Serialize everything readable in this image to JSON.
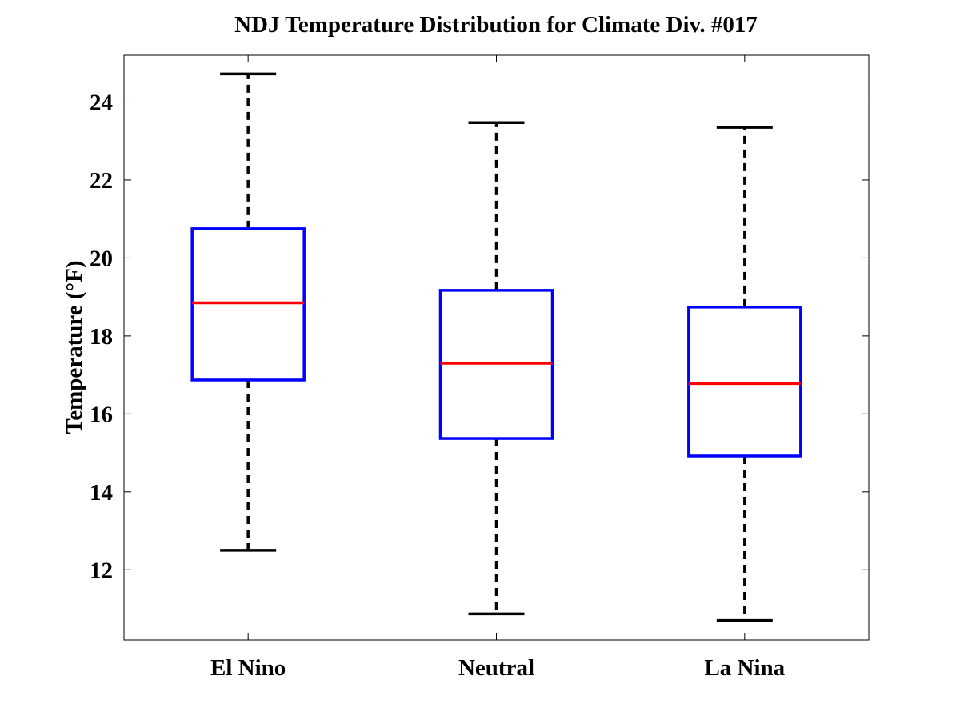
{
  "chart_data": {
    "type": "boxplot",
    "title": "NDJ Temperature Distribution for Climate Div. #017",
    "xlabel": "",
    "ylabel": "Temperature (°F)",
    "ylim": [
      10.2,
      25.2
    ],
    "yticks": [
      12,
      14,
      16,
      18,
      20,
      22,
      24
    ],
    "ytick_labels": [
      "12",
      "14",
      "16",
      "18",
      "20",
      "22",
      "24"
    ],
    "categories": [
      "El Nino",
      "Neutral",
      "La Nina"
    ],
    "boxes": [
      {
        "name": "El Nino",
        "whisker_low": 12.5,
        "q1": 16.87,
        "median": 18.85,
        "q3": 20.75,
        "whisker_high": 24.72
      },
      {
        "name": "Neutral",
        "whisker_low": 10.87,
        "q1": 15.37,
        "median": 17.3,
        "q3": 19.17,
        "whisker_high": 23.47
      },
      {
        "name": "La Nina",
        "whisker_low": 10.7,
        "q1": 14.92,
        "median": 16.78,
        "q3": 18.74,
        "whisker_high": 23.35
      }
    ],
    "colors": {
      "box": "#0000ff",
      "median": "#ff0000",
      "whisker": "#000000",
      "axes": "#000000"
    },
    "grid": false,
    "legend": "none"
  }
}
